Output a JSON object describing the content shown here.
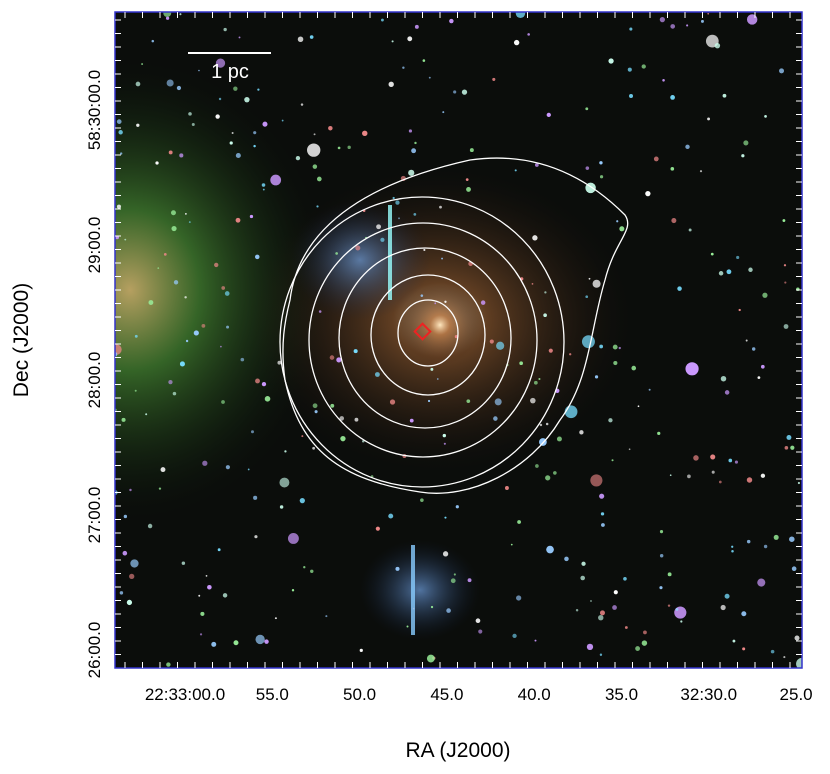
{
  "figure": {
    "scale_bar": "1 pc",
    "x_axis": {
      "label": "RA (J2000)",
      "ticks": [
        "22:33:00.0",
        "55.0",
        "50.0",
        "45.0",
        "40.0",
        "35.0",
        "32:30.0",
        "25.0"
      ]
    },
    "y_axis": {
      "label": "Dec (J2000)",
      "ticks": [
        "58:30:00.0",
        "29:00.0",
        "28:00.0",
        "27:00.0",
        "26:00.0"
      ]
    }
  }
}
